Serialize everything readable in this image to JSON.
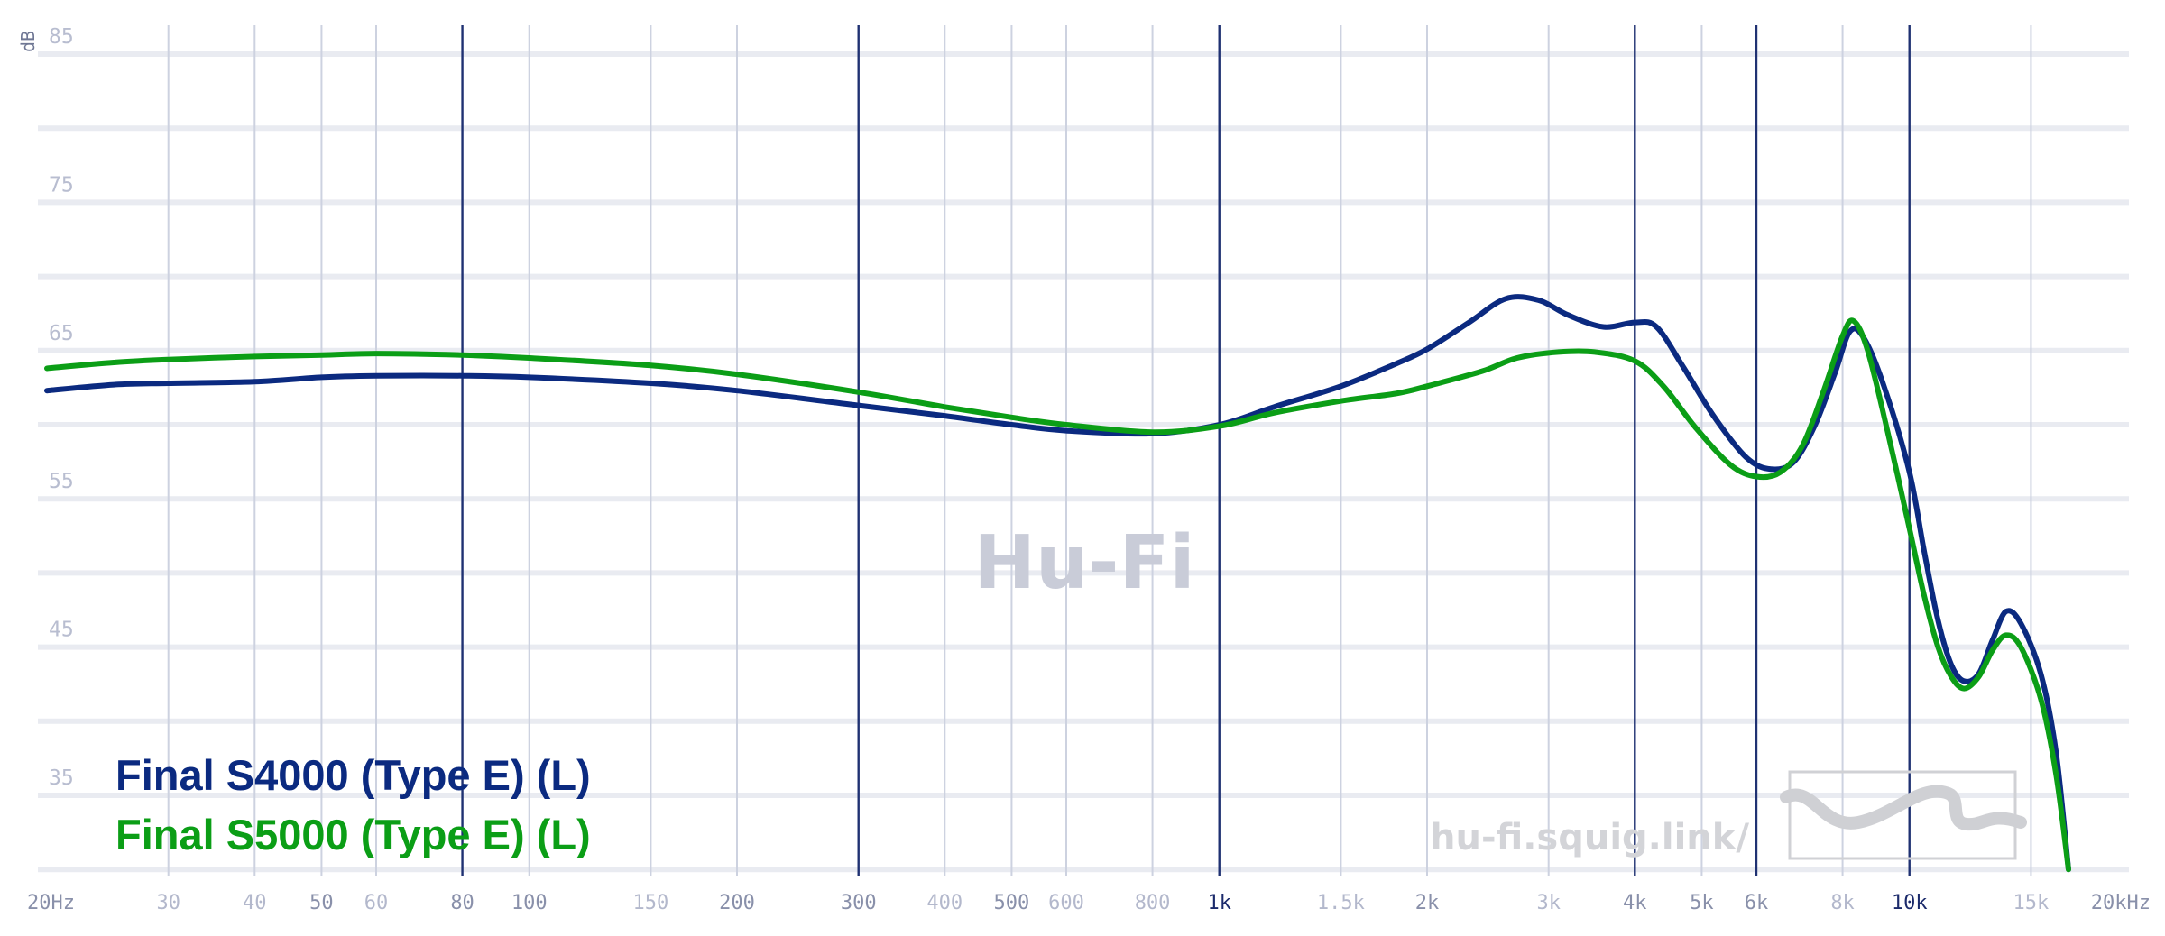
{
  "chart_data": {
    "type": "line",
    "title": "",
    "y_unit": "dB",
    "xlabel": "",
    "ylabel": "",
    "x_scale": "log",
    "xlim_hz": [
      20,
      20000
    ],
    "ylim_db": [
      30,
      88
    ],
    "y_ticks": [
      {
        "value": 85,
        "label": "85"
      },
      {
        "value": 75,
        "label": "75"
      },
      {
        "value": 65,
        "label": "65"
      },
      {
        "value": 55,
        "label": "55"
      },
      {
        "value": 45,
        "label": "45"
      },
      {
        "value": 35,
        "label": "35"
      }
    ],
    "y_gridlines": [
      85,
      80,
      75,
      70,
      65,
      60,
      55,
      50,
      45,
      40,
      35,
      30
    ],
    "x_ticks": [
      {
        "value": 20,
        "label": "20Hz",
        "style": "mid",
        "line": "none"
      },
      {
        "value": 30,
        "label": "30",
        "style": "minor",
        "line": "light"
      },
      {
        "value": 40,
        "label": "40",
        "style": "minor",
        "line": "light"
      },
      {
        "value": 50,
        "label": "50",
        "style": "mid",
        "line": "light"
      },
      {
        "value": 60,
        "label": "60",
        "style": "minor",
        "line": "light"
      },
      {
        "value": 80,
        "label": "80",
        "style": "mid",
        "line": "dark"
      },
      {
        "value": 100,
        "label": "100",
        "style": "mid",
        "line": "light"
      },
      {
        "value": 150,
        "label": "150",
        "style": "minor",
        "line": "light"
      },
      {
        "value": 200,
        "label": "200",
        "style": "mid",
        "line": "light"
      },
      {
        "value": 300,
        "label": "300",
        "style": "mid",
        "line": "dark"
      },
      {
        "value": 400,
        "label": "400",
        "style": "minor",
        "line": "light"
      },
      {
        "value": 500,
        "label": "500",
        "style": "mid",
        "line": "light"
      },
      {
        "value": 600,
        "label": "600",
        "style": "minor",
        "line": "light"
      },
      {
        "value": 800,
        "label": "800",
        "style": "minor",
        "line": "light"
      },
      {
        "value": 1000,
        "label": "1k",
        "style": "major",
        "line": "dark"
      },
      {
        "value": 1500,
        "label": "1.5k",
        "style": "minor",
        "line": "light"
      },
      {
        "value": 2000,
        "label": "2k",
        "style": "mid",
        "line": "light"
      },
      {
        "value": 3000,
        "label": "3k",
        "style": "minor",
        "line": "light"
      },
      {
        "value": 4000,
        "label": "4k",
        "style": "mid",
        "line": "dark"
      },
      {
        "value": 5000,
        "label": "5k",
        "style": "mid",
        "line": "light"
      },
      {
        "value": 6000,
        "label": "6k",
        "style": "mid",
        "line": "dark"
      },
      {
        "value": 8000,
        "label": "8k",
        "style": "minor",
        "line": "light"
      },
      {
        "value": 10000,
        "label": "10k",
        "style": "major",
        "line": "dark"
      },
      {
        "value": 15000,
        "label": "15k",
        "style": "minor",
        "line": "light"
      },
      {
        "value": 20000,
        "label": "20kHz",
        "style": "mid",
        "line": "none"
      }
    ],
    "legend_position": "bottom-left",
    "grid": true,
    "series": [
      {
        "name": "Final S4000 (Type E) (L)",
        "color": "#0b2a80",
        "points": [
          [
            20,
            62.3
          ],
          [
            25,
            62.7
          ],
          [
            30,
            62.8
          ],
          [
            40,
            62.9
          ],
          [
            50,
            63.2
          ],
          [
            60,
            63.3
          ],
          [
            80,
            63.3
          ],
          [
            100,
            63.2
          ],
          [
            150,
            62.8
          ],
          [
            200,
            62.3
          ],
          [
            300,
            61.3
          ],
          [
            400,
            60.6
          ],
          [
            500,
            60.0
          ],
          [
            600,
            59.6
          ],
          [
            800,
            59.4
          ],
          [
            1000,
            60.0
          ],
          [
            1200,
            61.2
          ],
          [
            1500,
            62.6
          ],
          [
            1800,
            64.1
          ],
          [
            2000,
            65.1
          ],
          [
            2300,
            66.9
          ],
          [
            2600,
            68.5
          ],
          [
            2900,
            68.4
          ],
          [
            3200,
            67.4
          ],
          [
            3600,
            66.6
          ],
          [
            4000,
            66.9
          ],
          [
            4300,
            66.6
          ],
          [
            4700,
            63.9
          ],
          [
            5200,
            60.6
          ],
          [
            5800,
            57.8
          ],
          [
            6300,
            57.0
          ],
          [
            6800,
            57.5
          ],
          [
            7300,
            60.0
          ],
          [
            7800,
            63.5
          ],
          [
            8200,
            66.3
          ],
          [
            8600,
            65.8
          ],
          [
            9200,
            62.5
          ],
          [
            10000,
            56.8
          ],
          [
            10500,
            51.5
          ],
          [
            11000,
            46.8
          ],
          [
            11500,
            43.8
          ],
          [
            12000,
            42.7
          ],
          [
            12600,
            43.2
          ],
          [
            13200,
            45.5
          ],
          [
            13800,
            47.4
          ],
          [
            14500,
            46.6
          ],
          [
            15500,
            43.2
          ],
          [
            16300,
            38.0
          ],
          [
            17000,
            30.0
          ]
        ]
      },
      {
        "name": "Final S5000 (Type E) (L)",
        "color": "#0b9e16",
        "points": [
          [
            20,
            63.8
          ],
          [
            25,
            64.2
          ],
          [
            30,
            64.4
          ],
          [
            40,
            64.6
          ],
          [
            50,
            64.7
          ],
          [
            60,
            64.8
          ],
          [
            80,
            64.7
          ],
          [
            100,
            64.5
          ],
          [
            150,
            64.0
          ],
          [
            200,
            63.4
          ],
          [
            300,
            62.2
          ],
          [
            400,
            61.2
          ],
          [
            500,
            60.5
          ],
          [
            600,
            60.0
          ],
          [
            800,
            59.5
          ],
          [
            1000,
            59.9
          ],
          [
            1200,
            60.8
          ],
          [
            1500,
            61.6
          ],
          [
            1800,
            62.1
          ],
          [
            2000,
            62.6
          ],
          [
            2400,
            63.6
          ],
          [
            2700,
            64.5
          ],
          [
            3100,
            64.9
          ],
          [
            3500,
            64.9
          ],
          [
            4000,
            64.3
          ],
          [
            4400,
            62.6
          ],
          [
            4900,
            59.8
          ],
          [
            5500,
            57.3
          ],
          [
            6000,
            56.5
          ],
          [
            6500,
            56.8
          ],
          [
            7000,
            58.6
          ],
          [
            7500,
            62.2
          ],
          [
            8000,
            66.0
          ],
          [
            8300,
            67.0
          ],
          [
            8700,
            65.0
          ],
          [
            9300,
            59.5
          ],
          [
            10000,
            53.0
          ],
          [
            10500,
            48.5
          ],
          [
            11000,
            45.0
          ],
          [
            11500,
            43.0
          ],
          [
            12000,
            42.2
          ],
          [
            12600,
            43.0
          ],
          [
            13200,
            44.8
          ],
          [
            13800,
            45.8
          ],
          [
            14500,
            45.0
          ],
          [
            15500,
            41.5
          ],
          [
            16300,
            36.5
          ],
          [
            17000,
            30.0
          ]
        ]
      }
    ]
  },
  "watermark": {
    "text": "Hu-Fi",
    "site": "hu-fi.squig.link/"
  },
  "colors": {
    "grid_light": "#cdd2e0",
    "grid_dark": "#1f3172",
    "hgrid": "#e9ebf1"
  }
}
